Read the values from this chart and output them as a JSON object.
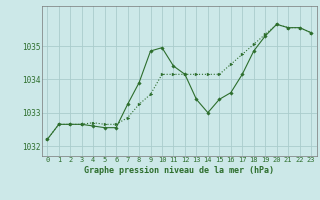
{
  "xlabel": "Graphe pression niveau de la mer (hPa)",
  "background_color": "#cce8e8",
  "grid_color": "#aacccc",
  "line_color": "#2d6e2d",
  "xlim": [
    -0.5,
    23.5
  ],
  "ylim": [
    1031.7,
    1036.2
  ],
  "yticks": [
    1032,
    1033,
    1034,
    1035
  ],
  "xticks": [
    0,
    1,
    2,
    3,
    4,
    5,
    6,
    7,
    8,
    9,
    10,
    11,
    12,
    13,
    14,
    15,
    16,
    17,
    18,
    19,
    20,
    21,
    22,
    23
  ],
  "series1_x": [
    0,
    1,
    2,
    3,
    4,
    5,
    6,
    7,
    8,
    9,
    10,
    11,
    12,
    13,
    14,
    15,
    16,
    17,
    18,
    19,
    20,
    21,
    22,
    23
  ],
  "series1_y": [
    1032.2,
    1032.65,
    1032.65,
    1032.65,
    1032.6,
    1032.55,
    1032.55,
    1033.25,
    1033.9,
    1034.85,
    1034.95,
    1034.4,
    1034.15,
    1033.4,
    1033.0,
    1033.4,
    1033.6,
    1034.15,
    1034.85,
    1035.3,
    1035.65,
    1035.55,
    1035.55,
    1035.4
  ],
  "series2_x": [
    0,
    1,
    2,
    3,
    4,
    5,
    6,
    7,
    8,
    9,
    10,
    11,
    12,
    13,
    14,
    15,
    16,
    17,
    18,
    19,
    20,
    21,
    22,
    23
  ],
  "series2_y": [
    1032.2,
    1032.65,
    1032.65,
    1032.65,
    1032.7,
    1032.65,
    1032.65,
    1032.85,
    1033.25,
    1033.55,
    1034.15,
    1034.15,
    1034.15,
    1034.15,
    1034.15,
    1034.15,
    1034.45,
    1034.75,
    1035.05,
    1035.35,
    1035.65,
    1035.55,
    1035.55,
    1035.4
  ],
  "tick_fontsize": 5.0,
  "xlabel_fontsize": 6.0,
  "marker_size": 1.8,
  "linewidth": 0.8
}
